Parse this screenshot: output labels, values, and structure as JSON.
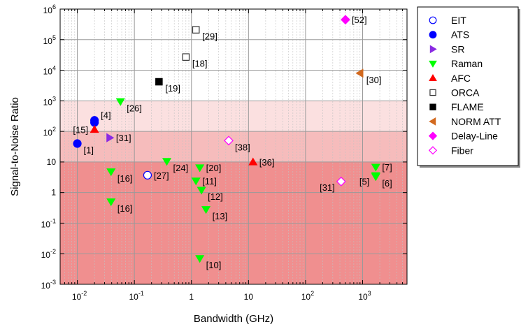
{
  "chart_data": {
    "type": "scatter",
    "title": "",
    "xlabel": "Bandwidth (GHz)",
    "ylabel": "Signal-to-Noise Ratio",
    "x_scale": "log",
    "y_scale": "log",
    "xlim": [
      0.005,
      6000
    ],
    "ylim": [
      0.001,
      1000000
    ],
    "x_ticks": [
      {
        "value": 0.01,
        "base": "10",
        "exp": "-2"
      },
      {
        "value": 0.1,
        "base": "10",
        "exp": "-1"
      },
      {
        "value": 1,
        "base": "1",
        "exp": ""
      },
      {
        "value": 10,
        "base": "10",
        "exp": ""
      },
      {
        "value": 100,
        "base": "10",
        "exp": "2"
      },
      {
        "value": 1000,
        "base": "10",
        "exp": "3"
      }
    ],
    "y_ticks": [
      {
        "value": 0.001,
        "base": "10",
        "exp": "-3"
      },
      {
        "value": 0.01,
        "base": "10",
        "exp": "-2"
      },
      {
        "value": 0.1,
        "base": "10",
        "exp": "-1"
      },
      {
        "value": 1,
        "base": "1",
        "exp": ""
      },
      {
        "value": 10,
        "base": "10",
        "exp": ""
      },
      {
        "value": 100,
        "base": "10",
        "exp": "2"
      },
      {
        "value": 1000,
        "base": "10",
        "exp": "3"
      },
      {
        "value": 10000,
        "base": "10",
        "exp": "4"
      },
      {
        "value": 100000,
        "base": "10",
        "exp": "5"
      },
      {
        "value": 1000000,
        "base": "10",
        "exp": "6"
      }
    ],
    "grid": true,
    "legend_position": "right",
    "bands": [
      {
        "y0": 0.001,
        "y1": 10,
        "color": "#f08f8f"
      },
      {
        "y0": 10,
        "y1": 100,
        "color": "#f6bcbc"
      },
      {
        "y0": 100,
        "y1": 1000,
        "color": "#fbe0e0"
      }
    ],
    "series": [
      {
        "name": "EIT",
        "marker": "circle",
        "color": "#0000ff",
        "filled": false,
        "points": [
          {
            "x": 0.17,
            "y": 3.7,
            "label": "[27]",
            "lp": "right"
          }
        ]
      },
      {
        "name": "ATS",
        "marker": "circle",
        "color": "#0000ff",
        "filled": true,
        "points": [
          {
            "x": 0.01,
            "y": 40,
            "label": "[1]",
            "lp": "right-below"
          },
          {
            "x": 0.02,
            "y": 230,
            "label": "[4]",
            "lp": "right-above"
          },
          {
            "x": 0.02,
            "y": 195,
            "label": "",
            "lp": "right"
          }
        ]
      },
      {
        "name": "SR",
        "marker": "triangle-right",
        "color": "#8a2be2",
        "filled": true,
        "points": [
          {
            "x": 0.037,
            "y": 62,
            "label": "[31]",
            "lp": "right"
          }
        ]
      },
      {
        "name": "Raman",
        "marker": "triangle-down",
        "color": "#00ff00",
        "filled": true,
        "points": [
          {
            "x": 0.057,
            "y": 950,
            "label": "[26]",
            "lp": "right-below"
          },
          {
            "x": 0.039,
            "y": 4.8,
            "label": "[16]",
            "lp": "right-below"
          },
          {
            "x": 0.039,
            "y": 0.5,
            "label": "[16]",
            "lp": "right-below"
          },
          {
            "x": 0.37,
            "y": 10.5,
            "label": "[24]",
            "lp": "right-below"
          },
          {
            "x": 1.4,
            "y": 6.5,
            "label": "[20]",
            "lp": "right"
          },
          {
            "x": 1.2,
            "y": 2.4,
            "label": "[11]",
            "lp": "right"
          },
          {
            "x": 1.5,
            "y": 1.2,
            "label": "[12]",
            "lp": "right-below"
          },
          {
            "x": 1.8,
            "y": 0.28,
            "label": "[13]",
            "lp": "right-below"
          },
          {
            "x": 1.4,
            "y": 0.007,
            "label": "[10]",
            "lp": "right-below"
          },
          {
            "x": 1700,
            "y": 6.8,
            "label": "[7]",
            "lp": "right"
          },
          {
            "x": 1700,
            "y": 3.6,
            "label": "[5]",
            "lp": "left-below"
          },
          {
            "x": 1700,
            "y": 3.3,
            "label": "[6]",
            "lp": "right-below"
          }
        ]
      },
      {
        "name": "AFC",
        "marker": "triangle-up",
        "color": "#ff0000",
        "filled": true,
        "points": [
          {
            "x": 0.02,
            "y": 115,
            "label": "[15]",
            "lp": "left"
          },
          {
            "x": 12,
            "y": 10,
            "label": "[36]",
            "lp": "right"
          }
        ]
      },
      {
        "name": "ORCA",
        "marker": "square",
        "color": "#000000",
        "filled": false,
        "points": [
          {
            "x": 1.2,
            "y": 210000,
            "label": "[29]",
            "lp": "right-below"
          },
          {
            "x": 0.8,
            "y": 27000,
            "label": "[18]",
            "lp": "right-below"
          }
        ]
      },
      {
        "name": "FLAME",
        "marker": "square",
        "color": "#000000",
        "filled": true,
        "points": [
          {
            "x": 0.27,
            "y": 4200,
            "label": "[19]",
            "lp": "right-below"
          }
        ]
      },
      {
        "name": "NORM ATT",
        "marker": "triangle-left",
        "color": "#d2691e",
        "filled": true,
        "points": [
          {
            "x": 900,
            "y": 8000,
            "label": "[30]",
            "lp": "right-below"
          }
        ]
      },
      {
        "name": "Delay-Line",
        "marker": "diamond",
        "color": "#ff00ff",
        "filled": true,
        "points": [
          {
            "x": 500,
            "y": 450000,
            "label": "[52]",
            "lp": "right"
          }
        ]
      },
      {
        "name": "Fiber",
        "marker": "diamond",
        "color": "#ff00ff",
        "filled": false,
        "points": [
          {
            "x": 4.5,
            "y": 50,
            "label": "[38]",
            "lp": "right-below"
          },
          {
            "x": 420,
            "y": 2.3,
            "label": "[31]",
            "lp": "left-below"
          }
        ]
      }
    ]
  }
}
